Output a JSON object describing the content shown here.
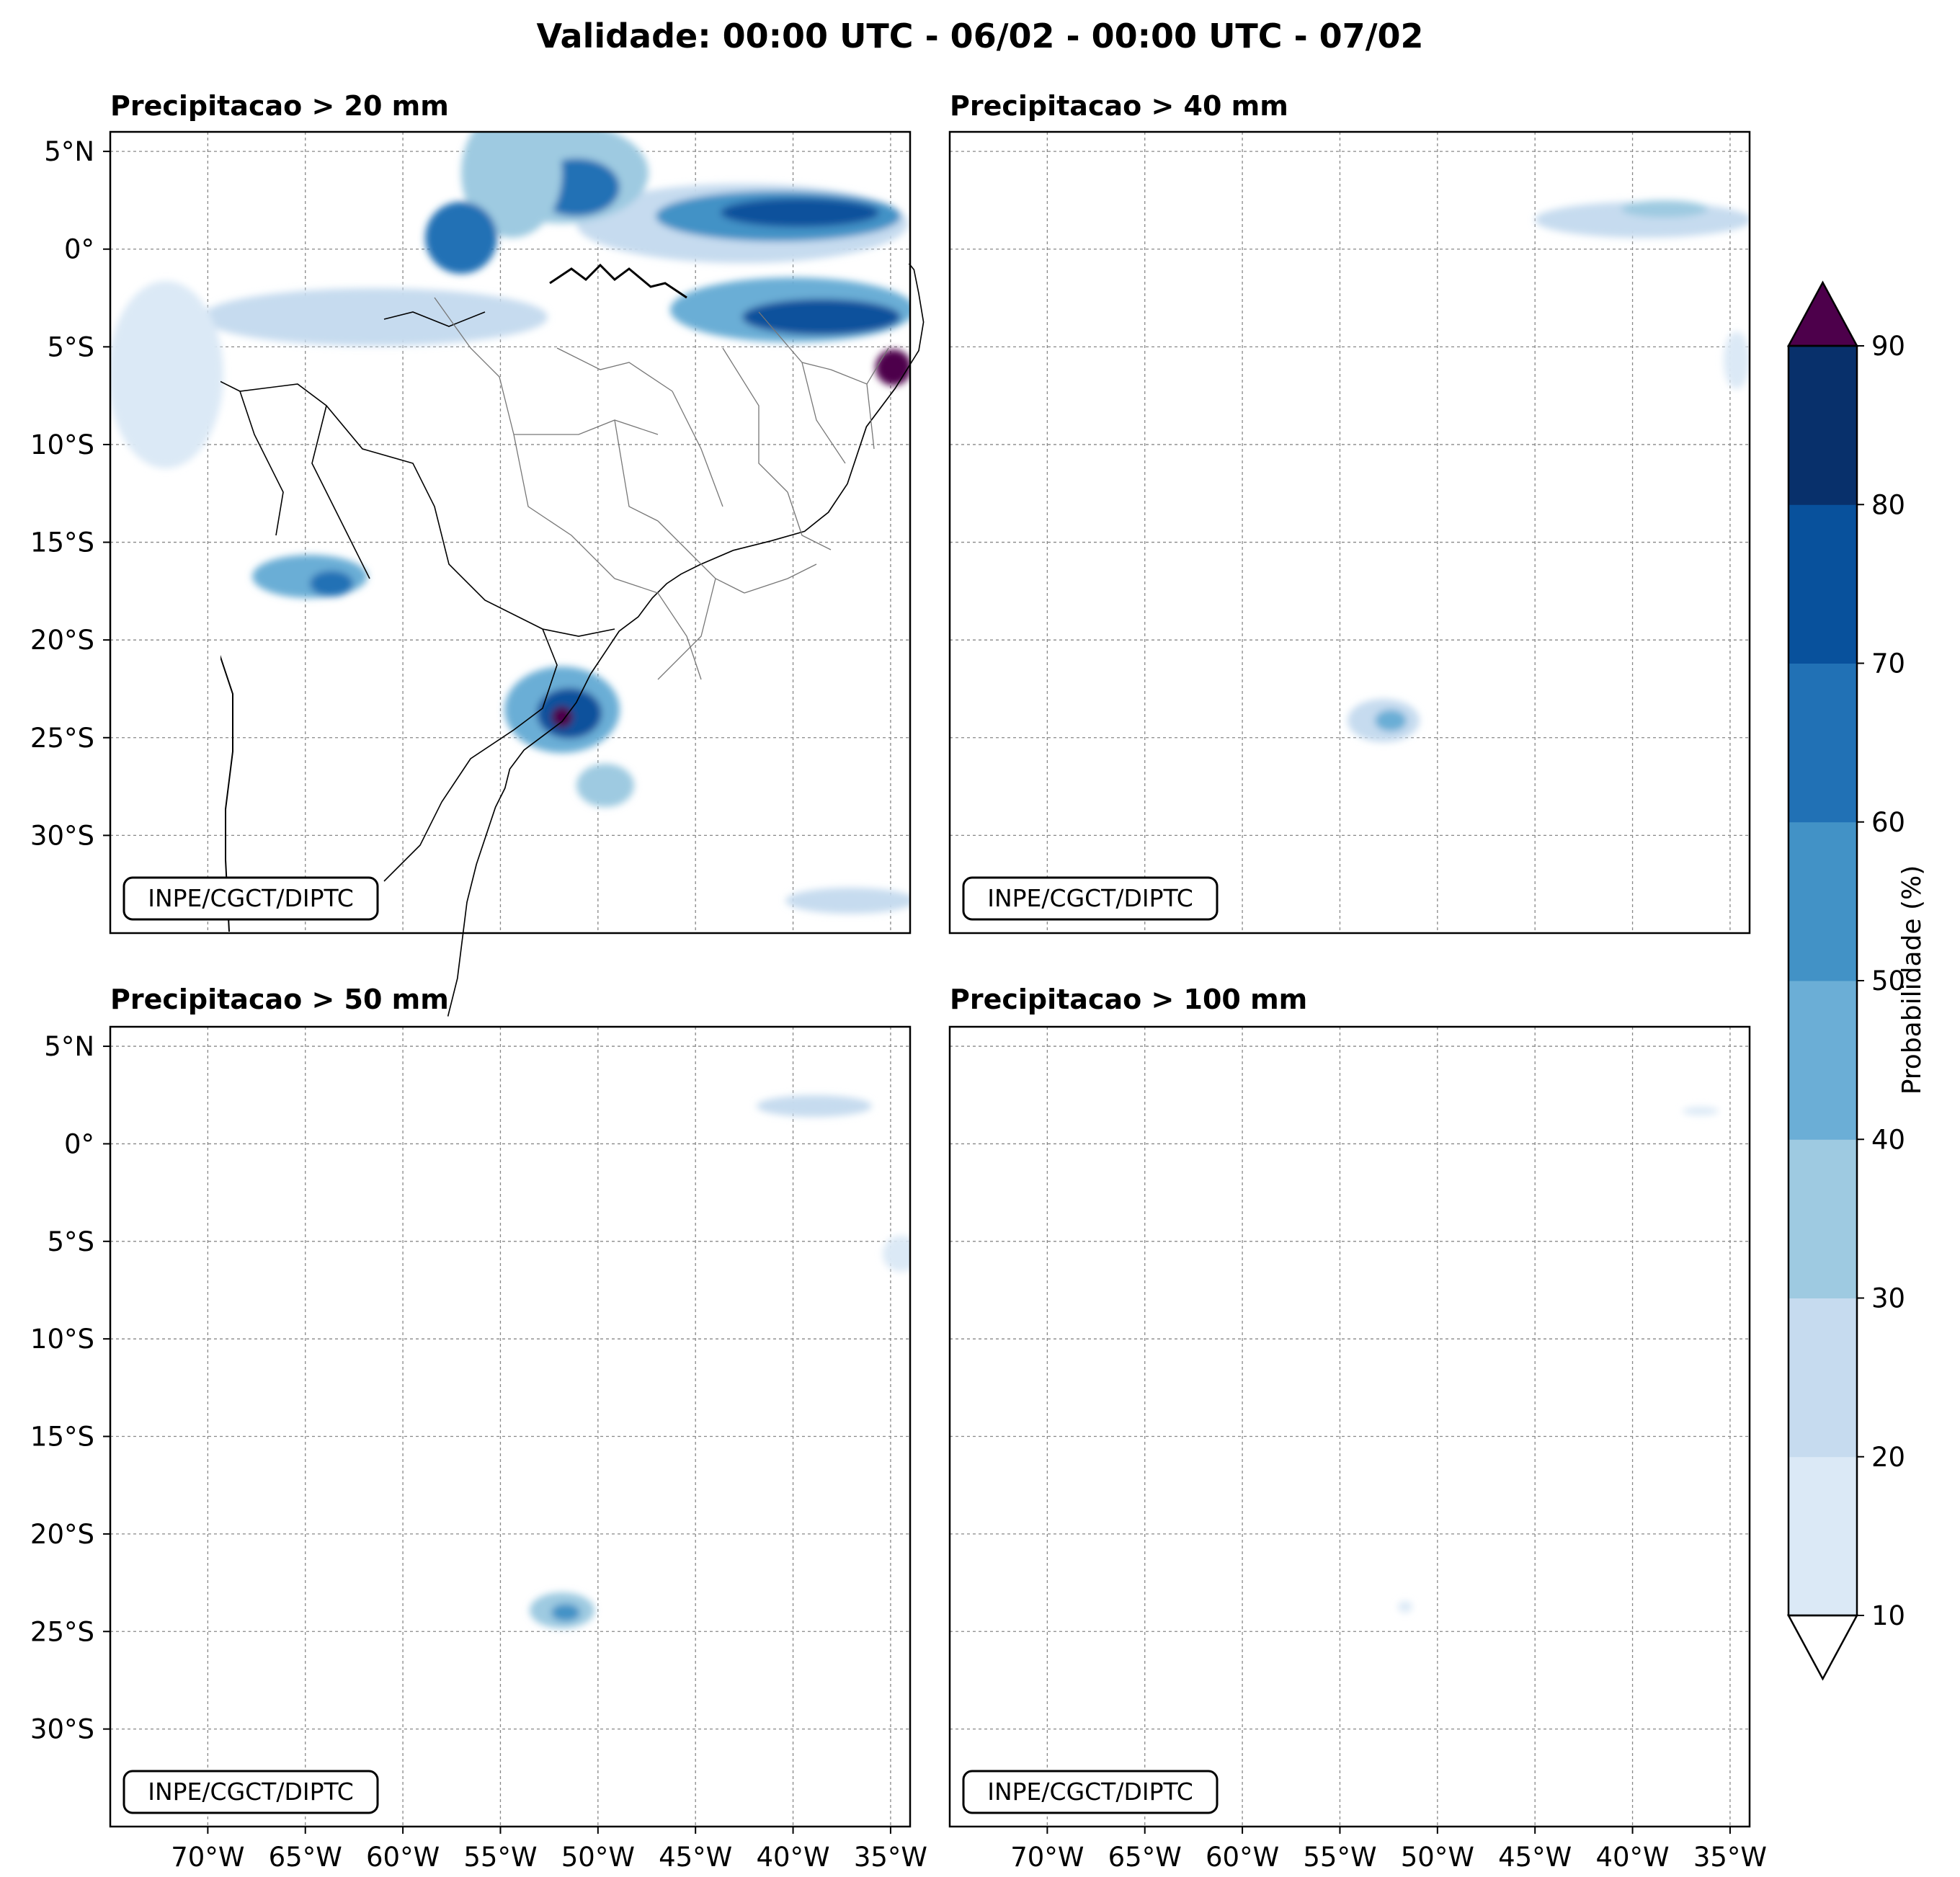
{
  "figure": {
    "title": "Validade: 00:00 UTC - 06/02 - 00:00 UTC - 07/02"
  },
  "panels": [
    {
      "title": "Precipitacao > 20 mm",
      "credit": "INPE/CGCT/DIPTC"
    },
    {
      "title": "Precipitacao > 40 mm",
      "credit": "INPE/CGCT/DIPTC"
    },
    {
      "title": "Precipitacao > 50 mm",
      "credit": "INPE/CGCT/DIPTC"
    },
    {
      "title": "Precipitacao > 100 mm",
      "credit": "INPE/CGCT/DIPTC"
    }
  ],
  "axes": {
    "lat_ticks": [
      "5°N",
      "0°",
      "5°S",
      "10°S",
      "15°S",
      "20°S",
      "25°S",
      "30°S"
    ],
    "lat_values": [
      5,
      0,
      -5,
      -10,
      -15,
      -20,
      -25,
      -30
    ],
    "lon_ticks": [
      "70°W",
      "65°W",
      "60°W",
      "55°W",
      "50°W",
      "45°W",
      "40°W",
      "35°W"
    ],
    "lon_values": [
      -70,
      -65,
      -60,
      -55,
      -50,
      -45,
      -40,
      -35
    ],
    "lat_range": [
      -35,
      6
    ],
    "lon_range": [
      -75,
      -34
    ]
  },
  "colorbar": {
    "label": "Probabilidade (%)",
    "ticks": [
      "10",
      "20",
      "30",
      "40",
      "50",
      "60",
      "70",
      "80",
      "90"
    ],
    "levels": [
      10,
      20,
      30,
      40,
      50,
      60,
      70,
      80,
      90
    ],
    "colors": [
      "#dbe9f6",
      "#c6dbef",
      "#9ecae1",
      "#6baed6",
      "#4292c6",
      "#2171b5",
      "#08519c",
      "#08306b"
    ],
    "over_color": "#4d004b",
    "under_color": "#ffffff"
  }
}
